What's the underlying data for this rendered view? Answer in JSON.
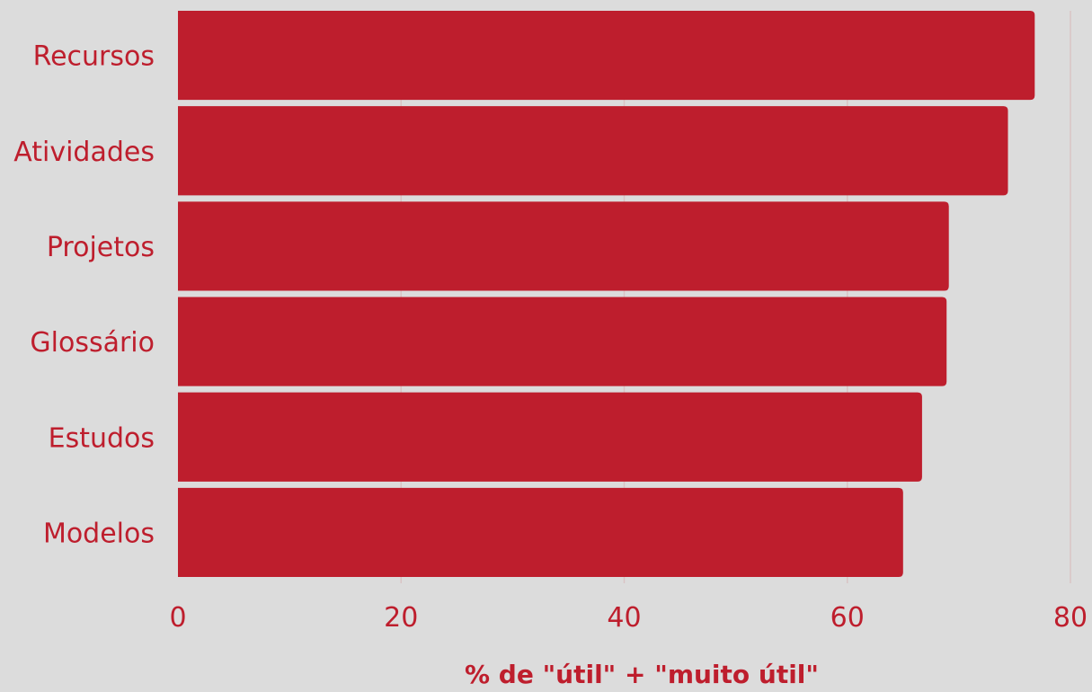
{
  "chart_data": {
    "type": "bar",
    "orientation": "horizontal",
    "categories": [
      "Recursos",
      "Atividades",
      "Projetos",
      "Glossário",
      "Estudos",
      "Modelos"
    ],
    "values": [
      76.8,
      74.4,
      69.1,
      68.9,
      66.7,
      65.0
    ],
    "title": "",
    "xlabel": "% de \"útil\" + \"muito útil\"",
    "ylabel": "",
    "xlim": [
      0,
      80
    ],
    "xticks": [
      "0",
      "20",
      "40",
      "60",
      "80"
    ],
    "grid": true,
    "colors": {
      "bar": "#be1e2d",
      "text": "#be1e2d",
      "background": "#dcdcdc",
      "grid": "#d9c3c4"
    }
  }
}
